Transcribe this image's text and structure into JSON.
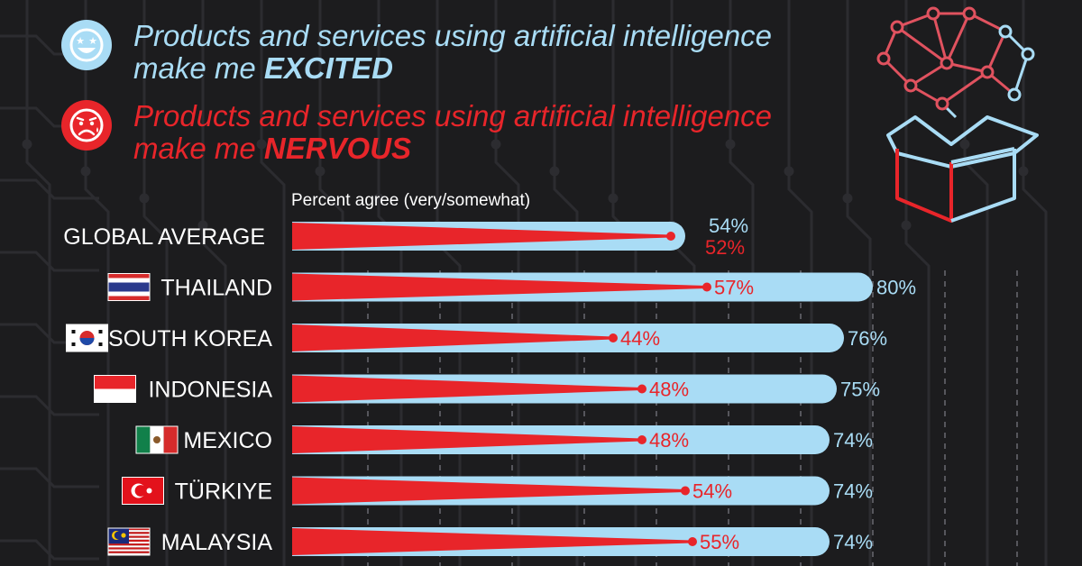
{
  "legend": {
    "excited": {
      "line1": "Products and services using artificial intelligence",
      "line2_prefix": "make me ",
      "line2_emphasis": "EXCITED",
      "color": "#a9dcf5",
      "icon": "star-eyes-face-icon"
    },
    "nervous": {
      "line1": "Products and services using artificial intelligence",
      "line2_prefix": "make me ",
      "line2_emphasis": "NERVOUS",
      "color": "#e8252a",
      "icon": "anxious-face-icon"
    }
  },
  "subtitle": "Percent agree (very/somewhat)",
  "chart_data": {
    "type": "bar",
    "orientation": "horizontal",
    "categories": [
      "GLOBAL AVERAGE",
      "THAILAND",
      "SOUTH KOREA",
      "INDONESIA",
      "MEXICO",
      "TÜRKIYE",
      "MALAYSIA"
    ],
    "series": [
      {
        "name": "EXCITED",
        "color": "#a9dcf5",
        "values": [
          54,
          80,
          76,
          75,
          74,
          74,
          74
        ]
      },
      {
        "name": "NERVOUS",
        "color": "#e8252a",
        "values": [
          52,
          57,
          44,
          48,
          48,
          54,
          55
        ]
      }
    ],
    "xlim": [
      0,
      100
    ],
    "unit": "%",
    "grid": true
  }
}
